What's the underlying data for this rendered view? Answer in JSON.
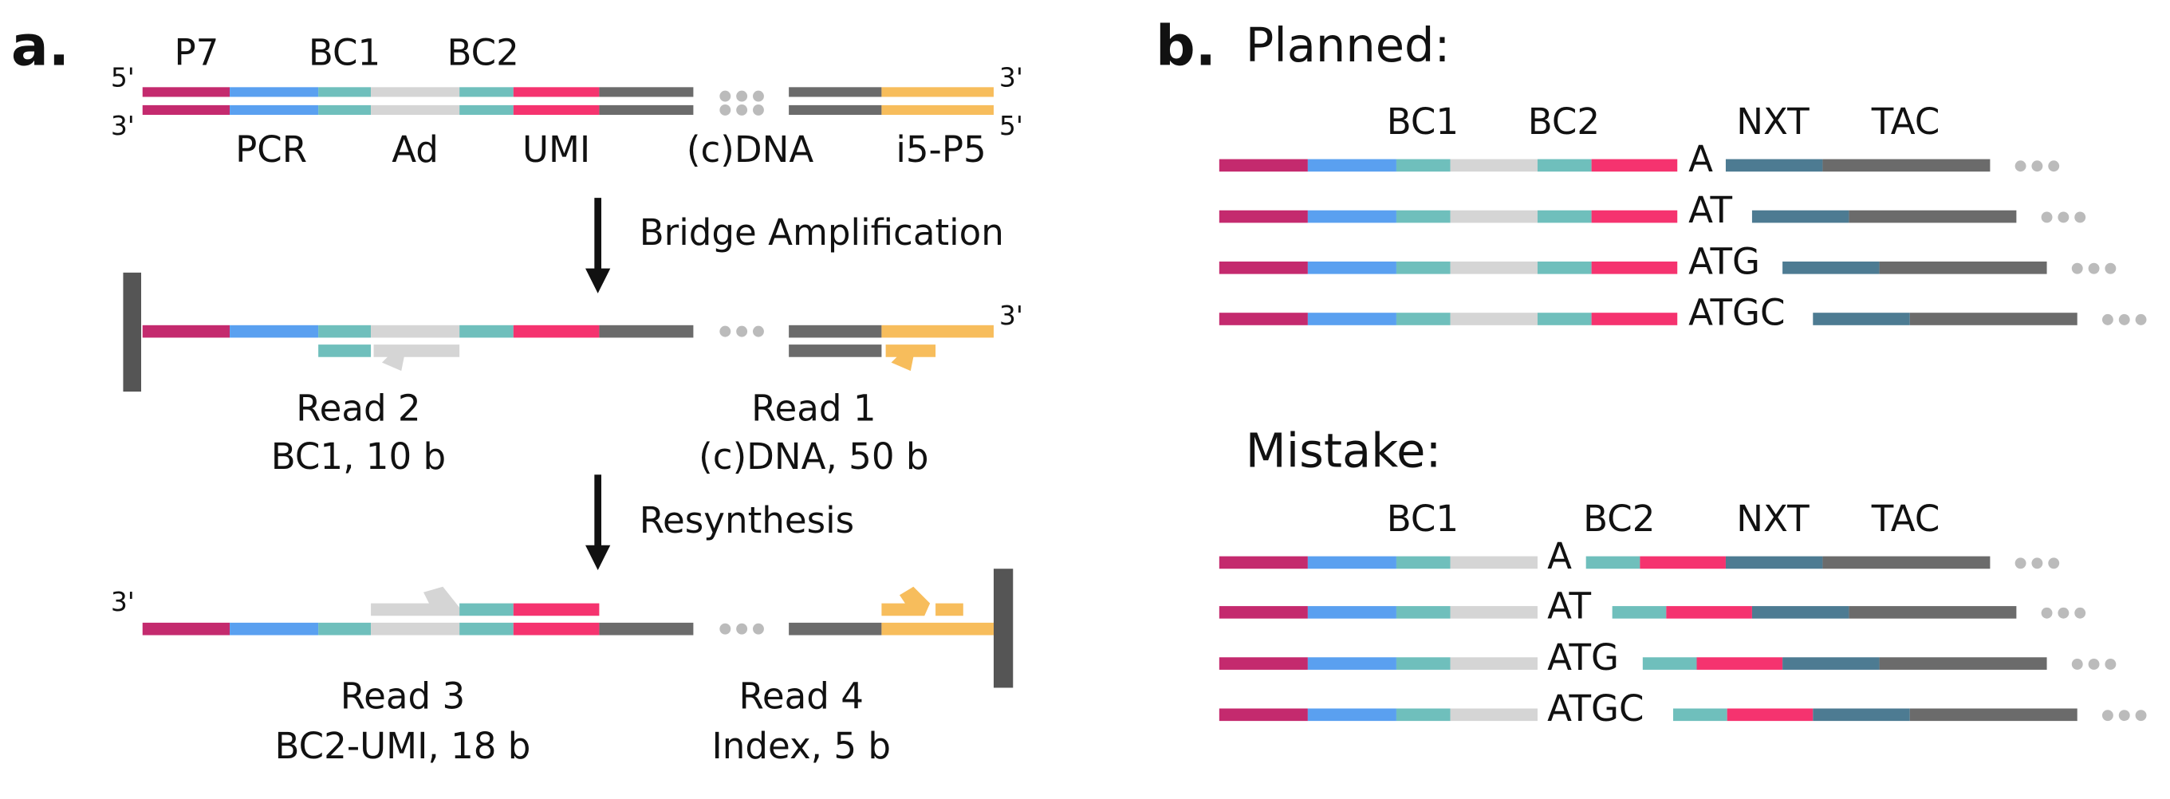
{
  "panel_a": {
    "label": "a.",
    "ends": {
      "top_left": "5'",
      "bottom_left": "3'",
      "top_right": "3'",
      "bottom_right": "5'",
      "bridge_right": "3'",
      "resynth_left": "3'"
    },
    "top_labels": [
      "P7",
      "BC1",
      "BC2"
    ],
    "bottom_labels": [
      "PCR",
      "Ad",
      "UMI",
      "(c)DNA",
      "i5-P5"
    ],
    "step1": "Bridge Amplification",
    "step2": "Resynthesis",
    "read2": [
      "Read 2",
      "BC1, 10 b"
    ],
    "read1": [
      "Read 1",
      "(c)DNA, 50 b"
    ],
    "read3": [
      "Read 3",
      "BC2-UMI, 18 b"
    ],
    "read4": [
      "Read 4",
      "Index, 5 b"
    ]
  },
  "panel_b": {
    "label": "b.",
    "planned": {
      "title": "Planned:",
      "labels": [
        "BC1",
        "BC2",
        "NXT",
        "TAC"
      ],
      "spacers": [
        "A",
        "AT",
        "ATG",
        "ATGC"
      ]
    },
    "mistake": {
      "title": "Mistake:",
      "labels": [
        "BC1",
        "BC2",
        "NXT",
        "TAC"
      ],
      "spacers": [
        "A",
        "AT",
        "ATG",
        "ATGC"
      ]
    }
  }
}
